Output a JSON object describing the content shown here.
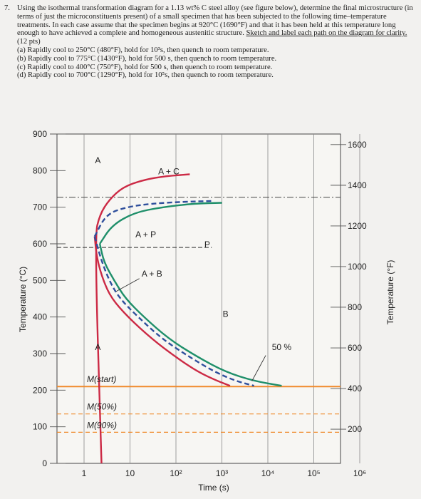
{
  "question": {
    "number": "7.",
    "intro_1": "Using the isothermal transformation diagram for a 1.13 wt% C steel alloy (see figure below), determine the final microstructure (in terms of just the microconstituents present) of a small specimen that has been subjected to the following time–temperature treatments. In each case assume that the specimen begins at 920°C (1690°F) and that it has been held at this temperature long enough to have achieved a complete and homogeneous austenitic structure. ",
    "intro_underlined": "Sketch and label each path on the diagram for clarity.",
    "points": " (12 pts)",
    "items": [
      "(a) Rapidly cool to 250°C (480°F), hold for 10³s, then quench to room temperature.",
      "(b) Rapidly cool to 775°C (1430°F), hold for 500 s, then quench to room temperature.",
      "(c) Rapidly cool to 400°C (750°F), hold for 500 s, then quench to room temperature.",
      "(d) Rapidly cool to 700°C (1290°F), hold for 10⁵s, then quench to room temperature."
    ]
  },
  "chart_data": {
    "type": "line",
    "xlabel": "Time (s)",
    "ylabel": "Temperature (°C)",
    "ylabel_right": "Temperature (°F)",
    "x_scale": "log",
    "xlim": [
      1,
      1000000
    ],
    "ylim": [
      0,
      900
    ],
    "y_ticks": [
      0,
      100,
      200,
      300,
      400,
      500,
      600,
      700,
      800,
      900
    ],
    "x_ticks": [
      {
        "t": 1,
        "label": "1"
      },
      {
        "t": 10,
        "label": "10"
      },
      {
        "t": 100,
        "label": "10²"
      },
      {
        "t": 1000,
        "label": "10³"
      },
      {
        "t": 10000,
        "label": "10⁴"
      },
      {
        "t": 100000,
        "label": "10⁵"
      },
      {
        "t": 1000000,
        "label": "10⁶"
      }
    ],
    "y_ticks_right": [
      200,
      400,
      600,
      800,
      1000,
      1200,
      1400,
      1600
    ],
    "region_labels": [
      {
        "text": "A",
        "t": 2.0,
        "T": 820
      },
      {
        "text": "A + C",
        "t": 70,
        "T": 790
      },
      {
        "text": "A + P",
        "t": 22,
        "T": 618
      },
      {
        "text": "P",
        "t": 480,
        "T": 590
      },
      {
        "text": "A + B",
        "t": 30,
        "T": 510
      },
      {
        "text": "B",
        "t": 1200,
        "T": 400
      },
      {
        "text": "A",
        "t": 2.0,
        "T": 310
      },
      {
        "text": "50 %",
        "t": 20000,
        "T": 310
      }
    ],
    "martensite": [
      {
        "label": "M(start)",
        "T": 210,
        "color": "#f08a2c"
      },
      {
        "label": "M(50%)",
        "T": 135,
        "color": "#f08a2c"
      },
      {
        "label": "M(90%)",
        "T": 85,
        "color": "#f08a2c"
      }
    ],
    "eutectoid_T": 727,
    "curves": [
      {
        "name": "",
        "color": "#cc2a45",
        "style": "solid",
        "points": [
          [
            2.4,
            0
          ],
          [
            1.7,
            620
          ],
          [
            2.2,
            680
          ],
          [
            3.5,
            720
          ],
          [
            7,
            755
          ],
          [
            20,
            775
          ],
          [
            60,
            785
          ],
          [
            200,
            790
          ]
        ],
        "lower": [
          [
            1.7,
            620
          ],
          [
            1.9,
            560
          ],
          [
            2.6,
            500
          ],
          [
            4,
            450
          ],
          [
            9,
            400
          ],
          [
            30,
            340
          ],
          [
            100,
            290
          ],
          [
            300,
            250
          ],
          [
            800,
            225
          ],
          [
            1500,
            212
          ]
        ]
      },
      {
        "name": "50 %",
        "color": "#2f4f9c",
        "style": "dashed",
        "points": [
          [
            1.7,
            620
          ],
          [
            3,
            680
          ],
          [
            8,
            700
          ],
          [
            30,
            710
          ],
          [
            150,
            715
          ],
          [
            600,
            717
          ]
        ],
        "lower": [
          [
            1.7,
            620
          ],
          [
            2.3,
            560
          ],
          [
            3.5,
            500
          ],
          [
            6,
            450
          ],
          [
            15,
            400
          ],
          [
            50,
            340
          ],
          [
            200,
            290
          ],
          [
            700,
            250
          ],
          [
            2000,
            225
          ],
          [
            5000,
            212
          ]
        ]
      },
      {
        "name": "",
        "color": "#1f8f6a",
        "style": "solid",
        "points": [
          [
            2.2,
            600
          ],
          [
            4,
            650
          ],
          [
            12,
            685
          ],
          [
            50,
            700
          ],
          [
            250,
            710
          ],
          [
            1000,
            712
          ]
        ],
        "lower": [
          [
            2.2,
            600
          ],
          [
            2.7,
            550
          ],
          [
            4.5,
            500
          ],
          [
            8,
            450
          ],
          [
            20,
            400
          ],
          [
            70,
            340
          ],
          [
            300,
            290
          ],
          [
            1200,
            250
          ],
          [
            5000,
            225
          ],
          [
            20000,
            212
          ]
        ]
      }
    ]
  }
}
